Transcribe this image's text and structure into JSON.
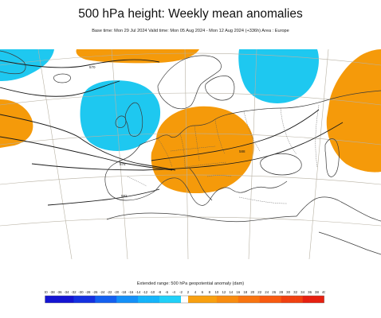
{
  "header": {
    "title": "500 hPa height: Weekly mean anomalies",
    "subtitle": "Base time: Mon 29 Jul 2024 Valid time: Mon 05 Aug 2024 - Mon 12 Aug 2024 (+336h) Area : Europe"
  },
  "map": {
    "contour_labels": [
      "570",
      "576",
      "582",
      "588"
    ],
    "colors": {
      "negative_anomaly": "#1ec8f0",
      "positive_anomaly": "#f59a0a",
      "coastline": "#3a3a3a",
      "graticule": "#b8b2a4",
      "height_contour": "#1a1a1a"
    }
  },
  "legend": {
    "title": "Extended range: 500 hPa geopotential anomaly (dam)",
    "ticks": [
      "-40",
      "-38",
      "-36",
      "-34",
      "-32",
      "-30",
      "-28",
      "-26",
      "-24",
      "-22",
      "-20",
      "-18",
      "-16",
      "-14",
      "-12",
      "-10",
      "-8",
      "-6",
      "-4",
      "-2",
      "2",
      "4",
      "6",
      "8",
      "10",
      "12",
      "14",
      "16",
      "18",
      "20",
      "22",
      "24",
      "26",
      "28",
      "30",
      "32",
      "34",
      "36",
      "38",
      "40"
    ],
    "neg_colors": [
      "#1414d2",
      "#1430e0",
      "#1460f0",
      "#1490f8",
      "#14b4fa",
      "#20d0f8"
    ],
    "pos_colors": [
      "#f8a010",
      "#f88c10",
      "#f87410",
      "#f85a10",
      "#f04010",
      "#e62010"
    ]
  }
}
